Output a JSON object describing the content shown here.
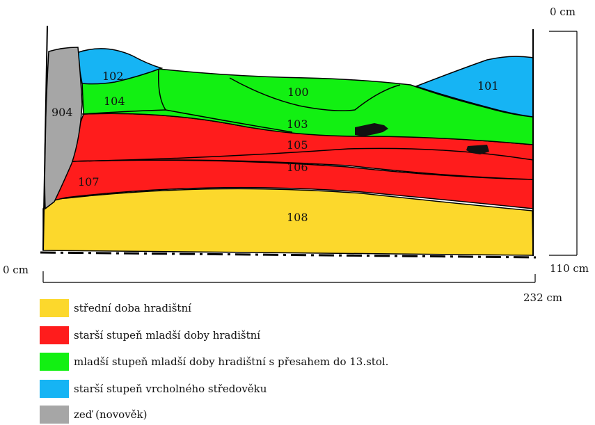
{
  "dimensions": {
    "top_right": "0 cm",
    "bottom_right": "110 cm",
    "bottom_left": "0 cm",
    "width_label": "232 cm"
  },
  "layers": [
    {
      "id": "904",
      "label": "904",
      "color": "#a6a6a6"
    },
    {
      "id": "102",
      "label": "102",
      "color": "#16b4f4"
    },
    {
      "id": "101",
      "label": "101",
      "color": "#16b4f4"
    },
    {
      "id": "104",
      "label": "104",
      "color": "#12f012"
    },
    {
      "id": "100",
      "label": "100",
      "color": "#12f012"
    },
    {
      "id": "103",
      "label": "103",
      "color": "#12f012"
    },
    {
      "id": "105",
      "label": "105",
      "color": "#ff1c1c"
    },
    {
      "id": "106",
      "label": "106",
      "color": "#ff1c1c"
    },
    {
      "id": "107",
      "label": "107",
      "color": "#ff1c1c"
    },
    {
      "id": "108",
      "label": "108",
      "color": "#fcd82c"
    }
  ],
  "legend": [
    {
      "label": "střední doba hradištní",
      "color": "#fcd82c"
    },
    {
      "label": "starší stupeň mladší doby hradištní",
      "color": "#ff1c1c"
    },
    {
      "label": "mladší stupeň mladší doby hradištní s přesahem do 13.stol.",
      "color": "#12f012"
    },
    {
      "label": "starší stupeň vrcholného středověku",
      "color": "#16b4f4"
    },
    {
      "label": "zeď (novověk)",
      "color": "#a6a6a6"
    }
  ]
}
